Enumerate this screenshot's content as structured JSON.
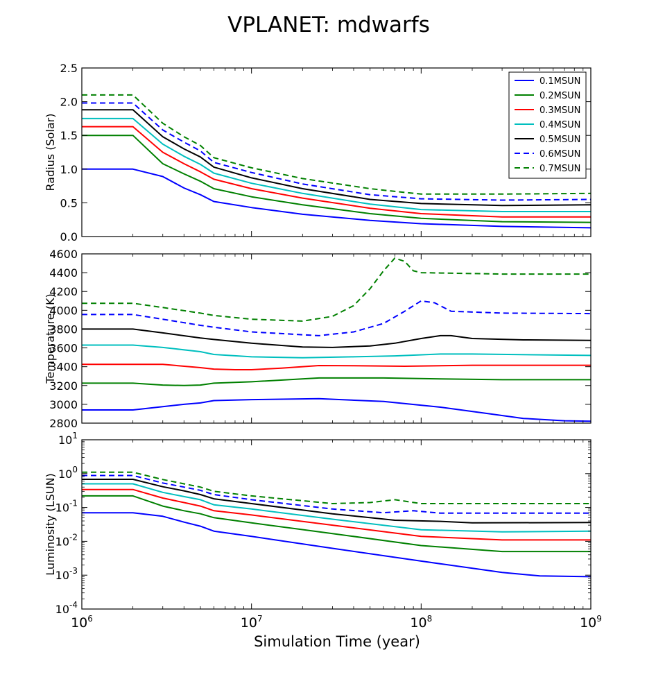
{
  "title": "VPLANET: mdwarfs",
  "xlabel": "Simulation Time (year)",
  "legend_position": "top-right",
  "legend_panel": 0,
  "colors": {
    "0.1MSUN": "#0000ff",
    "0.2MSUN": "#008000",
    "0.3MSUN": "#ff0000",
    "0.4MSUN": "#00bfbf",
    "0.5MSUN": "#000000",
    "0.6MSUN": "#0000ff",
    "0.7MSUN": "#008000"
  },
  "chart_data": [
    {
      "type": "line",
      "ylabel": "Radius (Solar)",
      "xscale": "log",
      "yscale": "linear",
      "xlim": [
        1000000,
        1000000000
      ],
      "ylim": [
        0,
        2.5
      ],
      "yticks": [
        "0.0",
        "0.5",
        "1.0",
        "1.5",
        "2.0",
        "2.5"
      ],
      "ytick_values": [
        0,
        0.5,
        1.0,
        1.5,
        2.0,
        2.5
      ],
      "xticks_shown": false,
      "grid": false,
      "series": [
        {
          "name": "0.1MSUN",
          "dashed": false,
          "x": [
            1000000,
            2000000,
            3000000,
            4000000,
            5000000,
            6000000,
            10000000,
            20000000,
            50000000,
            100000000,
            300000000,
            1000000000
          ],
          "y": [
            1.0,
            1.0,
            0.89,
            0.72,
            0.62,
            0.52,
            0.43,
            0.33,
            0.24,
            0.19,
            0.15,
            0.13
          ]
        },
        {
          "name": "0.2MSUN",
          "dashed": false,
          "x": [
            1000000,
            2000000,
            3000000,
            4000000,
            5000000,
            6000000,
            10000000,
            20000000,
            50000000,
            100000000,
            300000000,
            1000000000
          ],
          "y": [
            1.5,
            1.5,
            1.08,
            0.93,
            0.82,
            0.71,
            0.59,
            0.47,
            0.34,
            0.27,
            0.22,
            0.21
          ]
        },
        {
          "name": "0.3MSUN",
          "dashed": false,
          "x": [
            1000000,
            2000000,
            3000000,
            4000000,
            5000000,
            6000000,
            10000000,
            20000000,
            50000000,
            100000000,
            300000000,
            1000000000
          ],
          "y": [
            1.63,
            1.63,
            1.25,
            1.08,
            0.96,
            0.85,
            0.71,
            0.57,
            0.42,
            0.34,
            0.29,
            0.29
          ]
        },
        {
          "name": "0.4MSUN",
          "dashed": false,
          "x": [
            1000000,
            2000000,
            3000000,
            4000000,
            5000000,
            6000000,
            10000000,
            20000000,
            50000000,
            100000000,
            300000000,
            1000000000
          ],
          "y": [
            1.75,
            1.75,
            1.37,
            1.19,
            1.07,
            0.94,
            0.79,
            0.64,
            0.48,
            0.4,
            0.37,
            0.37
          ]
        },
        {
          "name": "0.5MSUN",
          "dashed": false,
          "x": [
            1000000,
            2000000,
            3000000,
            4000000,
            5000000,
            6000000,
            10000000,
            20000000,
            50000000,
            100000000,
            300000000,
            1000000000
          ],
          "y": [
            1.88,
            1.88,
            1.48,
            1.3,
            1.18,
            1.03,
            0.87,
            0.71,
            0.55,
            0.49,
            0.46,
            0.47
          ]
        },
        {
          "name": "0.6MSUN",
          "dashed": true,
          "x": [
            1000000,
            2000000,
            3000000,
            4000000,
            5000000,
            6000000,
            10000000,
            20000000,
            50000000,
            100000000,
            300000000,
            1000000000
          ],
          "y": [
            1.98,
            1.98,
            1.58,
            1.4,
            1.27,
            1.1,
            0.95,
            0.78,
            0.62,
            0.56,
            0.54,
            0.55
          ]
        },
        {
          "name": "0.7MSUN",
          "dashed": true,
          "x": [
            1000000,
            2000000,
            3000000,
            4000000,
            5000000,
            6000000,
            10000000,
            20000000,
            50000000,
            70000000,
            100000000,
            300000000,
            1000000000
          ],
          "y": [
            2.1,
            2.1,
            1.68,
            1.48,
            1.35,
            1.17,
            1.02,
            0.86,
            0.71,
            0.67,
            0.63,
            0.63,
            0.64
          ]
        }
      ]
    },
    {
      "type": "line",
      "ylabel": "Temperature (K)",
      "xscale": "log",
      "yscale": "linear",
      "xlim": [
        1000000,
        1000000000
      ],
      "ylim": [
        2800,
        4600
      ],
      "yticks": [
        "2800",
        "3000",
        "3200",
        "3400",
        "3600",
        "3800",
        "4000",
        "4200",
        "4400",
        "4600"
      ],
      "ytick_values": [
        2800,
        3000,
        3200,
        3400,
        3600,
        3800,
        4000,
        4200,
        4400,
        4600
      ],
      "xticks_shown": false,
      "grid": false,
      "series": [
        {
          "name": "0.1MSUN",
          "dashed": false,
          "x": [
            1000000,
            2000000,
            3000000,
            4000000,
            5000000,
            6000000,
            10000000,
            25000000,
            60000000,
            130000000,
            250000000,
            400000000,
            700000000,
            1000000000
          ],
          "y": [
            2940,
            2940,
            2975,
            3000,
            3015,
            3040,
            3050,
            3060,
            3030,
            2970,
            2900,
            2850,
            2825,
            2820
          ]
        },
        {
          "name": "0.2MSUN",
          "dashed": false,
          "x": [
            1000000,
            2000000,
            3000000,
            4000000,
            5000000,
            6000000,
            10000000,
            25000000,
            60000000,
            130000000,
            300000000,
            1000000000
          ],
          "y": [
            3225,
            3225,
            3205,
            3200,
            3205,
            3225,
            3240,
            3280,
            3280,
            3270,
            3262,
            3262
          ]
        },
        {
          "name": "0.3MSUN",
          "dashed": false,
          "x": [
            1000000,
            3000000,
            5000000,
            6000000,
            8000000,
            10000000,
            15000000,
            25000000,
            40000000,
            80000000,
            200000000,
            1000000000
          ],
          "y": [
            3425,
            3425,
            3390,
            3375,
            3368,
            3368,
            3385,
            3412,
            3410,
            3405,
            3415,
            3415
          ]
        },
        {
          "name": "0.4MSUN",
          "dashed": false,
          "x": [
            1000000,
            2000000,
            3000000,
            5000000,
            6000000,
            10000000,
            20000000,
            40000000,
            70000000,
            130000000,
            200000000,
            1000000000
          ],
          "y": [
            3630,
            3630,
            3605,
            3560,
            3530,
            3505,
            3495,
            3505,
            3515,
            3535,
            3535,
            3520
          ]
        },
        {
          "name": "0.5MSUN",
          "dashed": false,
          "x": [
            1000000,
            2000000,
            3000000,
            5000000,
            6000000,
            10000000,
            20000000,
            30000000,
            50000000,
            70000000,
            100000000,
            130000000,
            150000000,
            200000000,
            400000000,
            1000000000
          ],
          "y": [
            3800,
            3800,
            3760,
            3705,
            3690,
            3650,
            3610,
            3605,
            3620,
            3650,
            3700,
            3730,
            3730,
            3700,
            3685,
            3680
          ]
        },
        {
          "name": "0.6MSUN",
          "dashed": true,
          "x": [
            1000000,
            2000000,
            3000000,
            5000000,
            6000000,
            10000000,
            25000000,
            40000000,
            60000000,
            80000000,
            100000000,
            120000000,
            150000000,
            300000000,
            1000000000
          ],
          "y": [
            3955,
            3955,
            3905,
            3840,
            3820,
            3770,
            3730,
            3770,
            3860,
            3990,
            4100,
            4080,
            3990,
            3970,
            3965
          ]
        },
        {
          "name": "0.7MSUN",
          "dashed": true,
          "x": [
            1000000,
            2000000,
            3000000,
            5000000,
            6000000,
            10000000,
            20000000,
            30000000,
            40000000,
            50000000,
            60000000,
            70000000,
            80000000,
            90000000,
            100000000,
            300000000,
            1000000000
          ],
          "y": [
            4075,
            4075,
            4030,
            3970,
            3945,
            3905,
            3885,
            3935,
            4050,
            4230,
            4420,
            4555,
            4520,
            4420,
            4400,
            4385,
            4385
          ]
        }
      ]
    },
    {
      "type": "line",
      "ylabel": "Luminosity (LSUN)",
      "xscale": "log",
      "yscale": "log",
      "xlim": [
        1000000,
        1000000000
      ],
      "ylim": [
        0.0001,
        10
      ],
      "yticks": [
        "10^-4",
        "10^-3",
        "10^-2",
        "10^-1",
        "10^0",
        "10^1"
      ],
      "ytick_values": [
        0.0001,
        0.001,
        0.01,
        0.1,
        1,
        10
      ],
      "xticks": [
        "10^6",
        "10^7",
        "10^8",
        "10^9"
      ],
      "xtick_values": [
        1000000,
        10000000,
        100000000,
        1000000000
      ],
      "xticks_shown": true,
      "grid": false,
      "series": [
        {
          "name": "0.1MSUN",
          "dashed": false,
          "x": [
            1000000,
            2000000,
            3000000,
            4000000,
            5000000,
            6000000,
            10000000,
            30000000,
            100000000,
            300000000,
            500000000,
            1000000000
          ],
          "y": [
            0.07,
            0.07,
            0.055,
            0.037,
            0.028,
            0.02,
            0.014,
            0.0062,
            0.0026,
            0.0012,
            0.00095,
            0.0009
          ]
        },
        {
          "name": "0.2MSUN",
          "dashed": false,
          "x": [
            1000000,
            2000000,
            3000000,
            4000000,
            5000000,
            6000000,
            10000000,
            30000000,
            100000000,
            300000000,
            1000000000
          ],
          "y": [
            0.22,
            0.22,
            0.11,
            0.08,
            0.065,
            0.05,
            0.035,
            0.017,
            0.0075,
            0.005,
            0.005
          ]
        },
        {
          "name": "0.3MSUN",
          "dashed": false,
          "x": [
            1000000,
            2000000,
            3000000,
            4000000,
            5000000,
            6000000,
            10000000,
            30000000,
            100000000,
            300000000,
            1000000000
          ],
          "y": [
            0.34,
            0.34,
            0.19,
            0.14,
            0.11,
            0.08,
            0.06,
            0.03,
            0.014,
            0.011,
            0.011
          ]
        },
        {
          "name": "0.4MSUN",
          "dashed": false,
          "x": [
            1000000,
            2000000,
            3000000,
            4000000,
            5000000,
            6000000,
            10000000,
            30000000,
            100000000,
            300000000,
            1000000000
          ],
          "y": [
            0.5,
            0.5,
            0.28,
            0.21,
            0.17,
            0.12,
            0.09,
            0.045,
            0.022,
            0.019,
            0.02
          ]
        },
        {
          "name": "0.5MSUN",
          "dashed": false,
          "x": [
            1000000,
            2000000,
            3000000,
            4000000,
            5000000,
            6000000,
            10000000,
            30000000,
            70000000,
            130000000,
            200000000,
            1000000000
          ],
          "y": [
            0.68,
            0.68,
            0.41,
            0.31,
            0.24,
            0.18,
            0.13,
            0.065,
            0.042,
            0.039,
            0.035,
            0.036
          ]
        },
        {
          "name": "0.6MSUN",
          "dashed": true,
          "x": [
            1000000,
            2000000,
            3000000,
            4000000,
            5000000,
            6000000,
            10000000,
            30000000,
            60000000,
            90000000,
            130000000,
            1000000000
          ],
          "y": [
            0.88,
            0.88,
            0.53,
            0.4,
            0.32,
            0.24,
            0.17,
            0.09,
            0.07,
            0.08,
            0.068,
            0.068
          ]
        },
        {
          "name": "0.7MSUN",
          "dashed": true,
          "x": [
            1000000,
            2000000,
            3000000,
            4000000,
            5000000,
            6000000,
            10000000,
            30000000,
            50000000,
            70000000,
            100000000,
            1000000000
          ],
          "y": [
            1.1,
            1.1,
            0.67,
            0.5,
            0.4,
            0.3,
            0.22,
            0.13,
            0.14,
            0.17,
            0.13,
            0.13
          ]
        }
      ]
    }
  ]
}
